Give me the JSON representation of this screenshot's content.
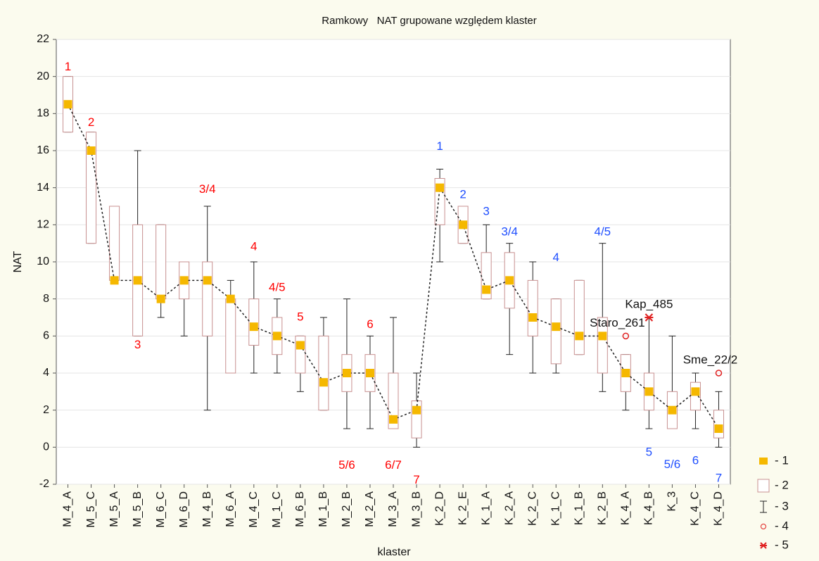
{
  "chart_data": {
    "type": "box",
    "title": "Ramkowy   NAT grupowane względem klaster",
    "x_label": "klaster",
    "y_label": "NAT",
    "categories": [
      "M_4_A",
      "M_5_C",
      "M_5_A",
      "M_5_B",
      "M_6_C",
      "M_6_D",
      "M_4_B",
      "M_6_A",
      "M_4_C",
      "M_1_C",
      "M_6_B",
      "M_1_B",
      "M_2_B",
      "M_2_A",
      "M_3_A",
      "M_3_B",
      "K_2_D",
      "K_2_E",
      "K_1_A",
      "K_2_A",
      "K_2_C",
      "K_1_C",
      "K_1_B",
      "K_2_B",
      "K_4_A",
      "K_4_B",
      "K_3",
      "K_4_C",
      "K_4_D"
    ],
    "median": [
      18.5,
      16,
      9,
      9,
      8,
      9,
      9,
      8,
      6.5,
      6,
      5.5,
      3.5,
      4,
      4,
      1.5,
      2,
      14,
      12,
      8.5,
      9,
      7,
      6.5,
      6,
      6,
      4,
      3,
      2,
      3,
      1
    ],
    "q1": [
      17,
      11,
      9,
      6,
      8,
      8,
      6,
      4,
      5.5,
      5,
      4,
      2,
      3,
      3,
      1,
      0.5,
      12,
      11,
      8,
      7.5,
      6,
      4.5,
      5,
      4,
      3,
      2,
      1,
      2,
      0.5
    ],
    "q3": [
      20,
      17,
      13,
      12,
      12,
      10,
      10,
      8,
      8,
      7,
      6,
      6,
      5,
      5,
      4,
      2.5,
      14.5,
      13,
      10.5,
      10.5,
      9,
      8,
      9,
      7,
      5,
      4,
      3,
      3.5,
      2
    ],
    "min": [
      17,
      11,
      9,
      6,
      7,
      6,
      2,
      4,
      4,
      4,
      3,
      2,
      1,
      1,
      1,
      0,
      10,
      11,
      8,
      5,
      4,
      4,
      5,
      3,
      2,
      1,
      1,
      1,
      0
    ],
    "max": [
      20,
      17,
      13,
      16,
      12,
      10,
      13,
      9,
      10,
      8,
      6,
      7,
      8,
      6,
      7,
      4,
      15,
      13,
      12,
      11,
      10,
      8,
      9,
      11,
      5,
      7,
      6,
      4,
      3
    ],
    "outliers": [
      {
        "category": 24,
        "value": 6,
        "label": "Staro_261"
      },
      {
        "category": 28,
        "value": 4,
        "label": "Sme_22/2"
      }
    ],
    "extremes": [
      {
        "category": 25,
        "value": 7,
        "label": "Kap_485"
      }
    ],
    "annotations": [
      {
        "category": 0,
        "y": 20.5,
        "text": "1",
        "color": "#ff0000"
      },
      {
        "category": 1,
        "y": 17.5,
        "text": "2",
        "color": "#ff0000"
      },
      {
        "category": 3,
        "y": 5.5,
        "text": "3",
        "color": "#ff0000"
      },
      {
        "category": 6,
        "y": 13.9,
        "text": "3/4",
        "color": "#ff0000"
      },
      {
        "category": 8,
        "y": 10.8,
        "text": "4",
        "color": "#ff0000"
      },
      {
        "category": 9,
        "y": 8.6,
        "text": "4/5",
        "color": "#ff0000"
      },
      {
        "category": 10,
        "y": 7,
        "text": "5",
        "color": "#ff0000"
      },
      {
        "category": 12,
        "y": -1,
        "text": "5/6",
        "color": "#ff0000"
      },
      {
        "category": 13,
        "y": 6.6,
        "text": "6",
        "color": "#ff0000"
      },
      {
        "category": 14,
        "y": -1,
        "text": "6/7",
        "color": "#ff0000"
      },
      {
        "category": 15,
        "y": -1.8,
        "text": "7",
        "color": "#ff0000"
      },
      {
        "category": 16,
        "y": 16.2,
        "text": "1",
        "color": "#1f4fff"
      },
      {
        "category": 17,
        "y": 13.6,
        "text": "2",
        "color": "#1f4fff"
      },
      {
        "category": 18,
        "y": 12.7,
        "text": "3",
        "color": "#1f4fff"
      },
      {
        "category": 19,
        "y": 11.6,
        "text": "3/4",
        "color": "#1f4fff"
      },
      {
        "category": 21,
        "y": 10.2,
        "text": "4",
        "color": "#1f4fff"
      },
      {
        "category": 23,
        "y": 11.6,
        "text": "4/5",
        "color": "#1f4fff"
      },
      {
        "category": 25,
        "y": -0.3,
        "text": "5",
        "color": "#1f4fff"
      },
      {
        "category": 26,
        "y": -0.95,
        "text": "5/6",
        "color": "#1f4fff"
      },
      {
        "category": 27,
        "y": -0.75,
        "text": "6",
        "color": "#1f4fff"
      },
      {
        "category": 28,
        "y": -1.7,
        "text": "7",
        "color": "#1f4fff"
      }
    ],
    "legend": [
      "- 1",
      "- 2",
      "- 3",
      "- 4",
      "- 5"
    ],
    "median_color": "#f5b800",
    "box_color": "#c89090",
    "whisker_color": "#222222",
    "outlier_color": "#e02020",
    "ylim": [
      -2,
      22
    ],
    "yticks": [
      -2,
      0,
      2,
      4,
      6,
      8,
      10,
      12,
      14,
      16,
      18,
      20,
      22
    ],
    "grid": true
  }
}
